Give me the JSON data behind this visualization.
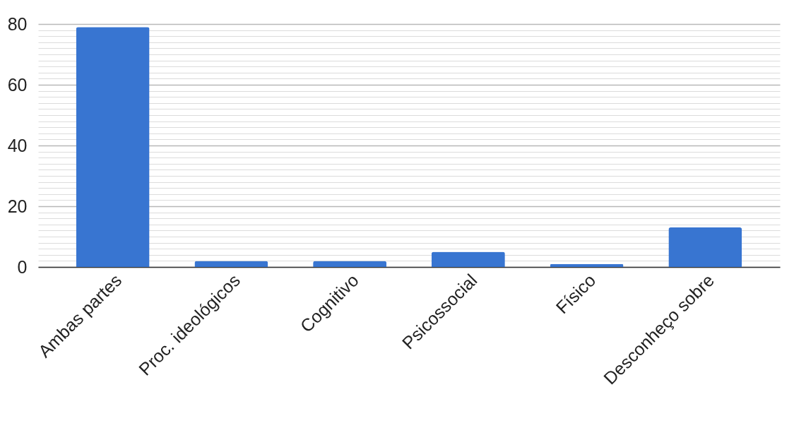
{
  "chart_data": {
    "type": "bar",
    "categories": [
      "Ambas partes",
      "Proc. ideológicos",
      "Cognitivo",
      "Psicossocial",
      "Físico",
      "Desconheço sobre"
    ],
    "values": [
      79,
      2,
      2,
      5,
      1,
      13
    ],
    "color": "#3875d1",
    "ylim": [
      0,
      80
    ],
    "yticks": [
      0,
      {
        "value": 2,
        "label": null
      },
      {
        "value": 4,
        "label": null
      },
      {
        "value": 6,
        "label": null
      },
      {
        "value": 8,
        "label": null
      },
      {
        "value": 10,
        "label": null
      },
      {
        "value": 12,
        "label": null
      },
      {
        "value": 14,
        "label": null
      },
      {
        "value": 16,
        "label": null
      },
      {
        "value": 18,
        "label": null
      },
      20,
      {
        "value": 22,
        "label": null
      },
      {
        "value": 24,
        "label": null
      },
      {
        "value": 26,
        "label": null
      },
      {
        "value": 28,
        "label": null
      },
      {
        "value": 30,
        "label": null
      },
      {
        "value": 32,
        "label": null
      },
      {
        "value": 34,
        "label": null
      },
      {
        "value": 36,
        "label": null
      },
      {
        "value": 38,
        "label": null
      },
      40,
      {
        "value": 42,
        "label": null
      },
      {
        "value": 44,
        "label": null
      },
      {
        "value": 46,
        "label": null
      },
      {
        "value": 48,
        "label": null
      },
      {
        "value": 50,
        "label": null
      },
      {
        "value": 52,
        "label": null
      },
      {
        "value": 54,
        "label": null
      },
      {
        "value": 56,
        "label": null
      },
      {
        "value": 58,
        "label": null
      },
      60,
      {
        "value": 62,
        "label": null
      },
      {
        "value": 64,
        "label": null
      },
      {
        "value": 66,
        "label": null
      },
      {
        "value": 68,
        "label": null
      },
      {
        "value": 70,
        "label": null
      },
      {
        "value": 72,
        "label": null
      },
      {
        "value": 74,
        "label": null
      },
      {
        "value": 76,
        "label": null
      },
      {
        "value": 78,
        "label": null
      },
      80
    ],
    "grid": "y"
  }
}
